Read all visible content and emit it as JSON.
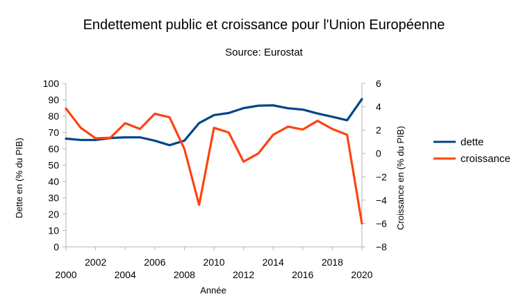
{
  "chart_data": {
    "type": "line",
    "title": "Endettement public et croissance  pour l'Union Européenne",
    "subtitle": "Source: Eurostat",
    "xlabel": "Année",
    "ylabel_left": "Dette en (% du PIB)",
    "ylabel_right": "Croissance en (% du PIB)",
    "x": [
      2000,
      2001,
      2002,
      2003,
      2004,
      2005,
      2006,
      2007,
      2008,
      2009,
      2010,
      2011,
      2012,
      2013,
      2014,
      2015,
      2016,
      2017,
      2018,
      2019,
      2020
    ],
    "xlim": [
      2000,
      2020
    ],
    "x_ticks_lower": [
      "2000",
      "2004",
      "2008",
      "2012",
      "2016",
      "2020"
    ],
    "x_ticks_upper": [
      "2002",
      "2006",
      "2010",
      "2014",
      "2018"
    ],
    "ylim_left": [
      0,
      100
    ],
    "y_ticks_left": [
      "0",
      "10",
      "20",
      "30",
      "40",
      "50",
      "60",
      "70",
      "80",
      "90",
      "100"
    ],
    "ylim_right": [
      -8,
      6
    ],
    "y_ticks_right": [
      "−8",
      "−6",
      "−4",
      "−2",
      "0",
      "2",
      "4",
      "6"
    ],
    "grid": false,
    "legend_position": "right",
    "series": [
      {
        "name": "dette",
        "axis": "left",
        "color": "#004586",
        "values": [
          66.2,
          65.4,
          65.4,
          66.6,
          67.0,
          67.0,
          65.0,
          62.2,
          65.0,
          75.8,
          80.6,
          81.9,
          84.9,
          86.4,
          86.6,
          84.8,
          84.0,
          81.6,
          79.6,
          77.5,
          90.4
        ]
      },
      {
        "name": "croissance",
        "axis": "right",
        "color": "#ff420e",
        "values": [
          3.85,
          2.2,
          1.3,
          1.35,
          2.6,
          2.1,
          3.4,
          3.1,
          0.4,
          -4.4,
          2.2,
          1.8,
          -0.7,
          0.0,
          1.6,
          2.3,
          2.05,
          2.8,
          2.1,
          1.6,
          -6.0
        ]
      }
    ]
  }
}
